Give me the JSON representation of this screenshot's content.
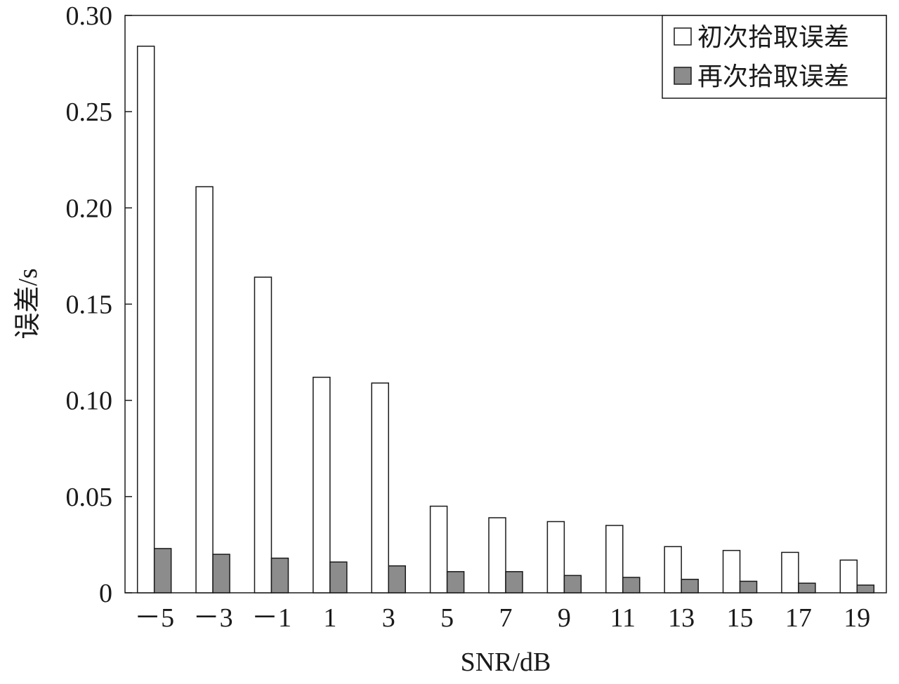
{
  "chart_data": {
    "type": "bar",
    "xlabel": "SNR/dB",
    "ylabel": "误差/s",
    "categories": [
      "－5",
      "－3",
      "－1",
      "1",
      "3",
      "5",
      "7",
      "9",
      "11",
      "13",
      "15",
      "17",
      "19"
    ],
    "series": [
      {
        "name": "初次拾取误差",
        "color": "#ffffff",
        "values": [
          0.284,
          0.211,
          0.164,
          0.112,
          0.109,
          0.045,
          0.039,
          0.037,
          0.035,
          0.024,
          0.022,
          0.021,
          0.017
        ]
      },
      {
        "name": "再次拾取误差",
        "color": "#8c8c8c",
        "values": [
          0.023,
          0.02,
          0.018,
          0.016,
          0.014,
          0.011,
          0.011,
          0.009,
          0.008,
          0.007,
          0.006,
          0.005,
          0.004
        ]
      }
    ],
    "ylim": [
      0,
      0.3
    ],
    "yticks": [
      0,
      0.05,
      0.1,
      0.15,
      0.2,
      0.25,
      0.3
    ],
    "ytick_labels": [
      "0",
      "0.05",
      "0.10",
      "0.15",
      "0.20",
      "0.25",
      "0.30"
    ],
    "grid": false,
    "legend_position": "top-right"
  }
}
